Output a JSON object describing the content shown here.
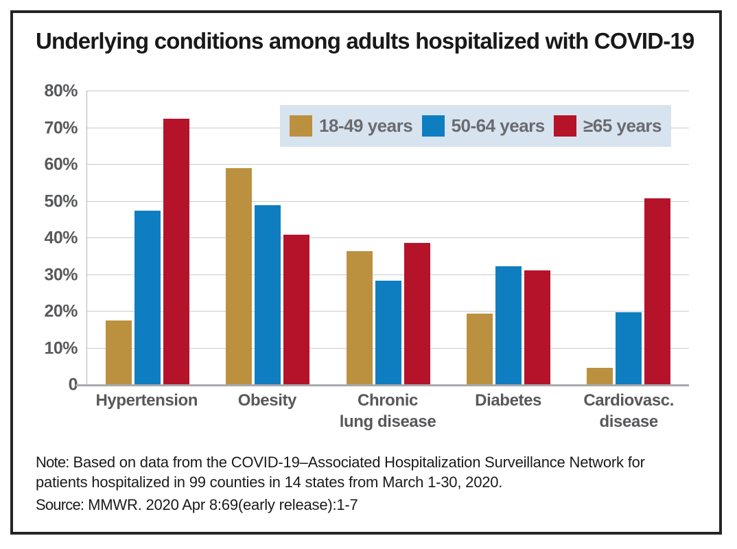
{
  "title": "Underlying conditions among adults hospitalized with COVID-19",
  "chart_data": {
    "type": "bar",
    "title": "Underlying conditions among adults hospitalized with COVID-19",
    "categories": [
      "Hypertension",
      "Obesity",
      "Chronic lung disease",
      "Diabetes",
      "Cardiovasc. disease"
    ],
    "category_label_lines": [
      [
        "Hypertension"
      ],
      [
        "Obesity"
      ],
      [
        "Chronic",
        "lung disease"
      ],
      [
        "Diabetes"
      ],
      [
        "Cardiovasc.",
        "disease"
      ]
    ],
    "series": [
      {
        "name": "18-49 years",
        "color": "#bb913f",
        "values": [
          17.6,
          59.0,
          36.5,
          19.5,
          4.7
        ]
      },
      {
        "name": "50-64 years",
        "color": "#0e7ec1",
        "values": [
          47.5,
          49.0,
          28.5,
          32.3,
          19.8
        ]
      },
      {
        "name": "≥65 years",
        "color": "#b5132a",
        "values": [
          72.6,
          41.0,
          38.7,
          31.3,
          50.8
        ]
      }
    ],
    "xlabel": "",
    "ylabel": "",
    "ylim": [
      0,
      80
    ],
    "yticks": [
      {
        "value": 80,
        "label": "80%"
      },
      {
        "value": 70,
        "label": "70%"
      },
      {
        "value": 60,
        "label": "60%"
      },
      {
        "value": 50,
        "label": "50%"
      },
      {
        "value": 40,
        "label": "40%"
      },
      {
        "value": 30,
        "label": "30%"
      },
      {
        "value": 20,
        "label": "20%"
      },
      {
        "value": 10,
        "label": "10%"
      },
      {
        "value": 0,
        "label": "0"
      }
    ],
    "grid": true,
    "legend_position": "inside-top-right"
  },
  "note": {
    "prefix": "Note:",
    "text": "Based on data from the COVID-19–Associated Hospitalization Surveillance Network for patients hospitalized in 99 counties in 14 states from March 1-30, 2020."
  },
  "source": {
    "prefix": "Source:",
    "text": "MMWR. 2020 Apr 8:69(early release):1-7"
  },
  "colors": {
    "series_18_49": "#bb913f",
    "series_50_64": "#0e7ec1",
    "series_65_plus": "#b5132a",
    "legend_background": "#d8e3f0",
    "gridline": "#c9cacc",
    "axis_line": "#a7a9ac",
    "tick_text": "#58595b",
    "legend_text": "#6a6b6f",
    "title_text": "#191919",
    "frame_border": "#242424"
  }
}
